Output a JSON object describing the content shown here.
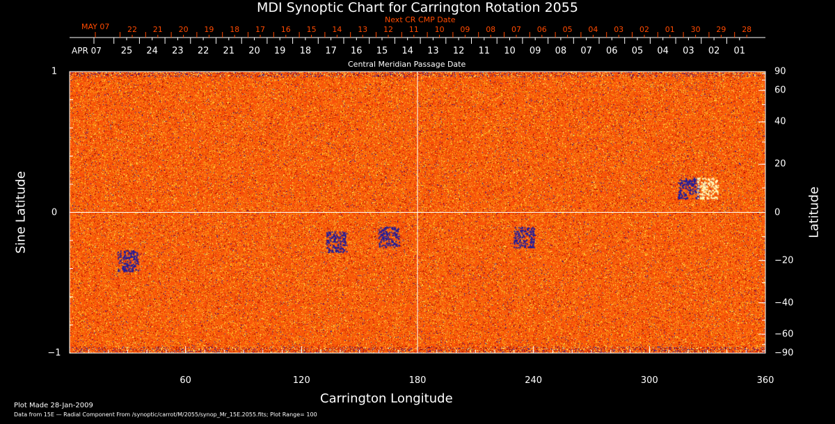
{
  "chart_data": {
    "type": "heatmap",
    "title": "MDI Synoptic Chart for Carrington Rotation 2055",
    "xlabel": "Carrington Longitude",
    "ylabel_left": "Sine Latitude",
    "ylabel_right": "Latitude",
    "xlim": [
      0,
      360
    ],
    "ylim": [
      -1,
      1
    ],
    "x_ticks": [
      "60",
      "120",
      "180",
      "240",
      "300",
      "360"
    ],
    "x_tick_values": [
      60,
      120,
      180,
      240,
      300,
      360
    ],
    "y_left_ticks": [
      "1",
      "0",
      "−1"
    ],
    "y_left_tick_values": [
      1,
      0,
      -1
    ],
    "y_right_ticks": [
      "90",
      "60",
      "40",
      "20",
      "0",
      "−20",
      "−40",
      "−60",
      "−90"
    ],
    "y_right_tick_values": [
      90,
      60,
      40,
      20,
      0,
      -20,
      -40,
      -60,
      -90
    ],
    "cmp_label": "Central Meridian Passage Date",
    "cmp_month": "APR 07",
    "cmp_dates": [
      "25",
      "24",
      "23",
      "22",
      "21",
      "20",
      "19",
      "18",
      "17",
      "16",
      "15",
      "14",
      "13",
      "12",
      "11",
      "10",
      "09",
      "08",
      "07",
      "06",
      "05",
      "04",
      "03",
      "02",
      "01"
    ],
    "next_cmp_label": "Next CR CMP Date",
    "next_month": "MAY 07",
    "next_dates": [
      "22",
      "21",
      "20",
      "19",
      "18",
      "17",
      "16",
      "15",
      "14",
      "13",
      "12",
      "11",
      "10",
      "09",
      "08",
      "07",
      "06",
      "05",
      "04",
      "03",
      "02",
      "01",
      "30",
      "29",
      "28"
    ],
    "plot_range": 100,
    "colors": {
      "field": "#ff5a10",
      "negative": "#1a1aa0",
      "positive": "#ffff80",
      "next_axis": "#ff4a00"
    }
  },
  "footer": {
    "plot_made": "Plot Made 28-Jan-2009",
    "data_source": "Data from 15E — Radial Component From /synoptic/carrot/M/2055/synop_Mr_15E.2055.fits; Plot Range=  100"
  }
}
